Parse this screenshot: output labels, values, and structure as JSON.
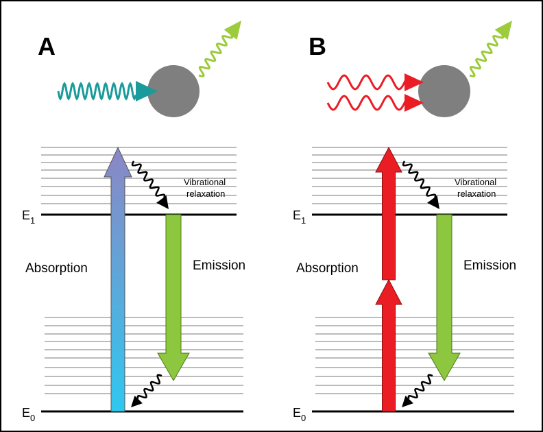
{
  "panels": [
    {
      "label": "A",
      "excited_level": {
        "symbol": "E",
        "subscript": "1"
      },
      "ground_level": {
        "symbol": "E",
        "subscript": "0"
      },
      "relaxation_label": [
        "Vibrational",
        "relaxation"
      ],
      "absorption_label": "Absorption",
      "emission_label": "Emission"
    },
    {
      "label": "B",
      "excited_level": {
        "symbol": "E",
        "subscript": "1"
      },
      "ground_level": {
        "symbol": "E",
        "subscript": "0"
      },
      "relaxation_label": [
        "Vibrational",
        "relaxation"
      ],
      "absorption_label": "Absorption",
      "emission_label": "Emission"
    }
  ]
}
